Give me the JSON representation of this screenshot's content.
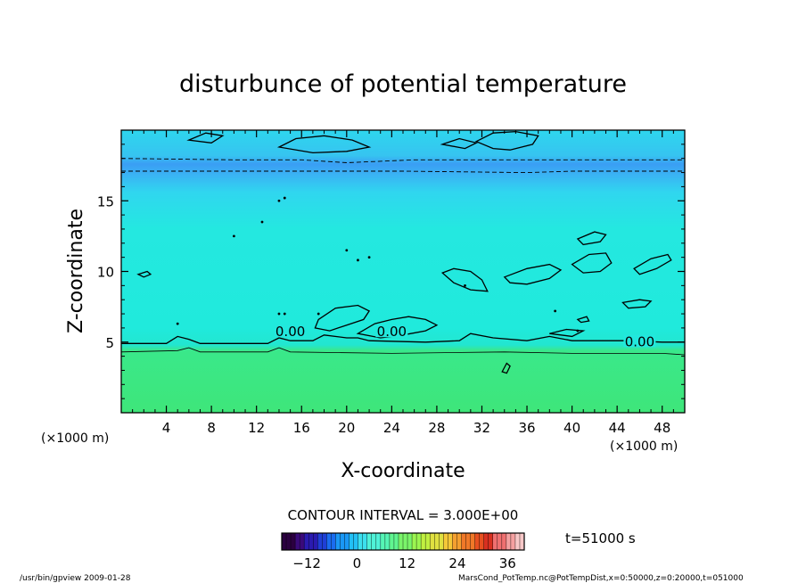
{
  "chart_data": {
    "type": "heatmap",
    "title": "disturbunce of potential temperature",
    "xlabel": "X-coordinate",
    "ylabel": "Z-coordinate",
    "x_unit_left": "(×1000 m)",
    "x_unit_right": "(×1000 m)",
    "xlim": [
      0,
      50
    ],
    "ylim": [
      0,
      20
    ],
    "x_ticks": [
      4,
      8,
      12,
      16,
      20,
      24,
      28,
      32,
      36,
      40,
      44,
      48
    ],
    "y_ticks": [
      5,
      10,
      15
    ],
    "contour_interval_text": "CONTOUR INTERVAL = 3.000E+00",
    "contour_labels": [
      {
        "text": "0.00",
        "x": 15,
        "z": 5.6
      },
      {
        "text": "0.00",
        "x": 24,
        "z": 5.6
      },
      {
        "text": "0.00",
        "x": 46,
        "z": 4.9
      }
    ],
    "colorbar": {
      "min": -18,
      "max": 40,
      "ticks": [
        -12,
        0,
        12,
        24,
        36
      ],
      "colors": [
        "#2b0040",
        "#3a0a7a",
        "#2a1bb0",
        "#1f3fd6",
        "#1a6cf0",
        "#1a98f5",
        "#22c0f5",
        "#3ce0ee",
        "#4ff2d8",
        "#55f5b5",
        "#60f590",
        "#7af56a",
        "#9cf550",
        "#c0f040",
        "#e0e040",
        "#f5c838",
        "#f5a030",
        "#f07828",
        "#e85020",
        "#d83020",
        "#f07070",
        "#f5a0a0",
        "#f8c8c8"
      ]
    },
    "field_colors": {
      "ground": "#3ce87c",
      "mid": "#22e8dd",
      "upper": "#30dcf0",
      "cold_band": "#3aaaf0"
    },
    "time_label": "t=51000 s"
  },
  "footer": {
    "left": "/usr/bin/gpview  2009-01-28",
    "right": "MarsCond_PotTemp.nc@PotTempDist,x=0:50000,z=0:20000,t=051000"
  }
}
